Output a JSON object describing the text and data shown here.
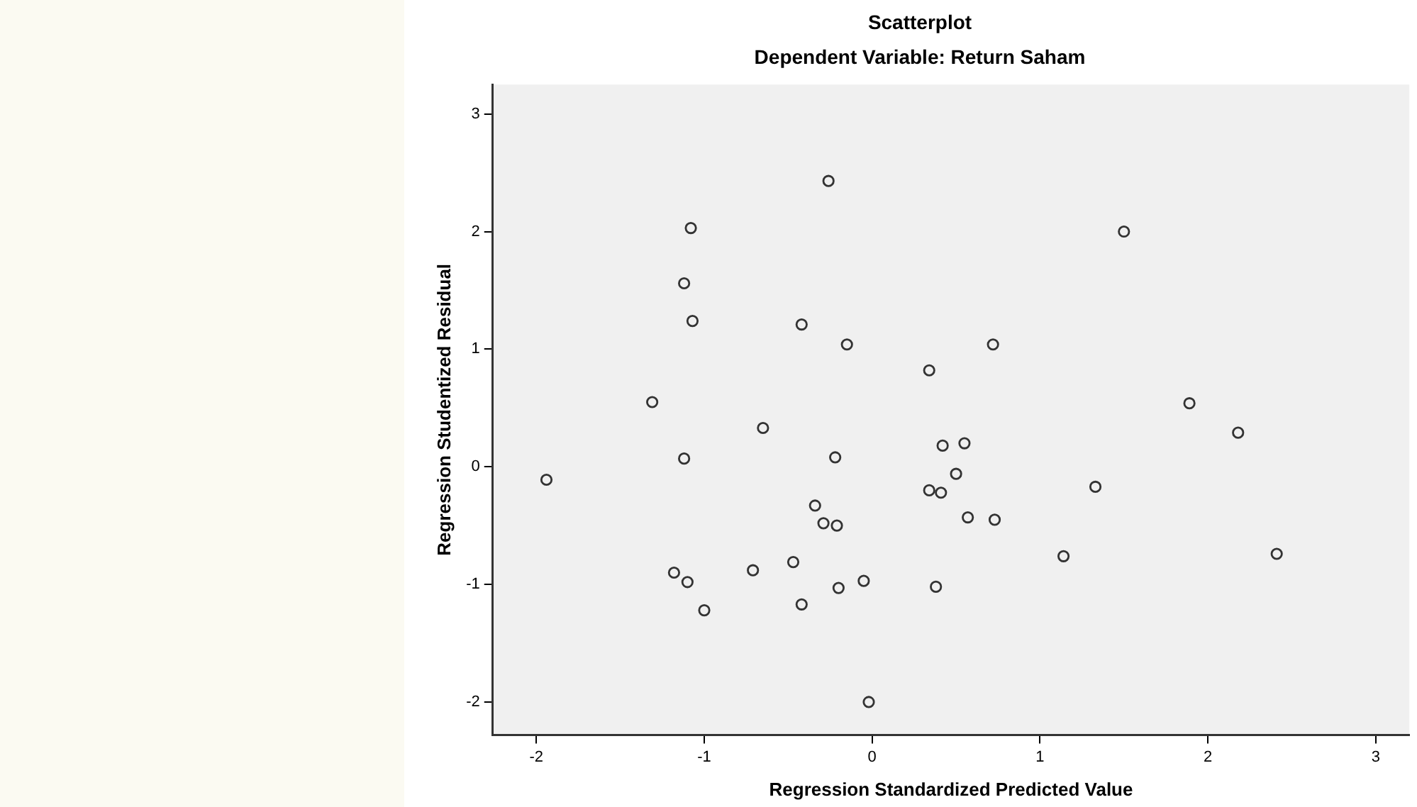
{
  "chart_data": {
    "type": "scatter",
    "title": "Scatterplot",
    "subtitle": "Dependent Variable: Return Saham",
    "xlabel": "Regression Standardized Predicted Value",
    "ylabel": "Regression Studentized Residual",
    "marker": "circle",
    "legend": false,
    "xlim": [
      -2.26,
      3.2
    ],
    "xticks": [
      -2,
      -1,
      0,
      1,
      2,
      3
    ],
    "ylim": [
      -2.28,
      3.25
    ],
    "yticks": [
      -2,
      -1,
      0,
      1,
      2,
      3
    ],
    "series": [
      {
        "color": "#333333",
        "x": [
          -0.26,
          -1.08,
          -1.12,
          -1.07,
          -0.42,
          -0.15,
          0.34,
          -1.31,
          -0.65,
          1.5,
          0.72,
          1.89,
          2.18,
          -1.94,
          -1.12,
          -0.22,
          -0.34,
          -0.29,
          -0.21,
          0.34,
          0.41,
          -1.18,
          -1.1,
          -1.0,
          -0.71,
          -0.47,
          -0.42,
          -0.2,
          -0.05,
          0.38,
          -0.02,
          0.42,
          0.55,
          0.5,
          0.57,
          0.73,
          1.33,
          1.14,
          2.41
        ],
        "values": [
          2.43,
          2.03,
          1.56,
          1.24,
          1.21,
          1.04,
          0.82,
          0.55,
          0.33,
          2.0,
          1.04,
          0.54,
          0.29,
          -0.11,
          0.07,
          0.08,
          -0.33,
          -0.48,
          -0.5,
          -0.2,
          -0.22,
          -0.9,
          -0.98,
          -1.22,
          -0.88,
          -0.81,
          -1.17,
          -1.03,
          -0.97,
          -1.02,
          -2.0,
          0.18,
          0.2,
          -0.06,
          -0.43,
          -0.45,
          -0.17,
          -0.76,
          -0.74
        ]
      }
    ]
  }
}
